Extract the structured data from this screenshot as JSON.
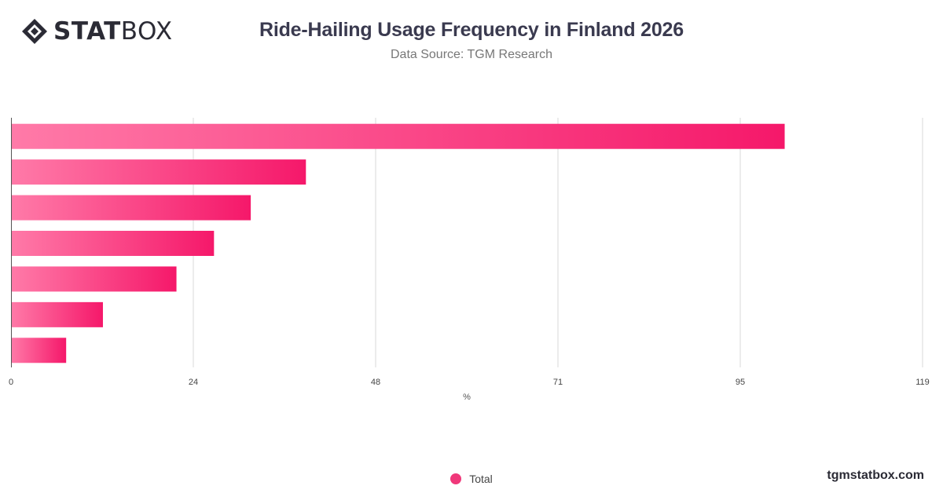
{
  "brand": {
    "logo_bold": "STAT",
    "logo_light": "BOX",
    "footer": "tgmstatbox.com"
  },
  "header": {
    "title": "Ride-Hailing Usage Frequency in Finland 2026",
    "subtitle": "Data Source: TGM Research"
  },
  "colors": {
    "bar_start": "#ff7aa8",
    "bar_end": "#f5186a",
    "legend_dot": "#f0387a",
    "grid": "#d9d9d9"
  },
  "chart_data": {
    "type": "bar",
    "orientation": "horizontal",
    "categories": [
      "",
      "",
      "",
      "",
      "",
      "",
      ""
    ],
    "series": [
      {
        "name": "Total",
        "values": [
          101,
          38.5,
          31.3,
          26.5,
          21.6,
          12.0,
          7.2
        ]
      }
    ],
    "xlabel": "%",
    "xlim": [
      0,
      119
    ],
    "xticks": [
      "0",
      "24",
      "48",
      "71",
      "95",
      "119"
    ],
    "grid": true,
    "legend": "bottom-center"
  }
}
